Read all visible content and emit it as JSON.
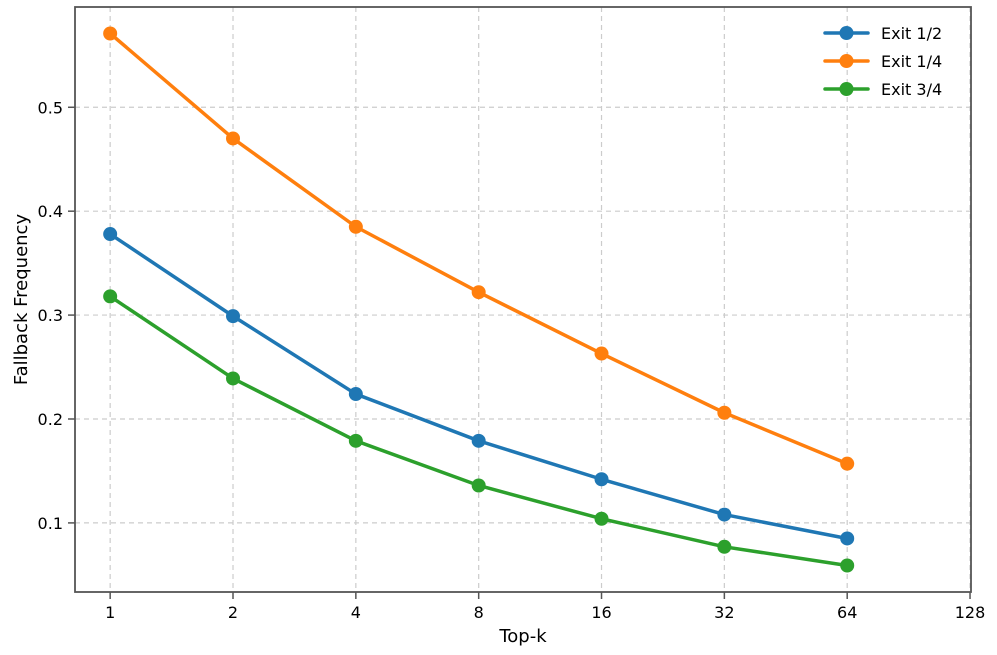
{
  "chart_data": {
    "type": "line",
    "title": "",
    "xlabel": "Top-k",
    "ylabel": "Fallback Frequency",
    "x_scale": "log2",
    "x": [
      1,
      2,
      4,
      8,
      16,
      32,
      64
    ],
    "x_ticks": [
      1,
      2,
      4,
      8,
      16,
      32,
      64,
      128
    ],
    "x_tick_labels": [
      "1",
      "2",
      "4",
      "8",
      "16",
      "32",
      "64",
      "128"
    ],
    "y_ticks": [
      0.1,
      0.2,
      0.3,
      0.4,
      0.5
    ],
    "y_tick_labels": [
      "0.1",
      "0.2",
      "0.3",
      "0.4",
      "0.5"
    ],
    "xlim": [
      0.82,
      128.7
    ],
    "ylim": [
      0.0335,
      0.5965
    ],
    "grid": true,
    "grid_style": "dashed",
    "legend": {
      "position": "upper-right",
      "frame": false
    },
    "series": [
      {
        "name": "Exit 1/2",
        "color": "#1f77b4",
        "values": [
          0.378,
          0.299,
          0.224,
          0.179,
          0.142,
          0.108,
          0.085
        ]
      },
      {
        "name": "Exit 1/4",
        "color": "#ff7f0e",
        "values": [
          0.571,
          0.47,
          0.385,
          0.322,
          0.263,
          0.206,
          0.157
        ]
      },
      {
        "name": "Exit 3/4",
        "color": "#2ca02c",
        "values": [
          0.318,
          0.239,
          0.179,
          0.136,
          0.104,
          0.077,
          0.059
        ]
      }
    ],
    "colors": {
      "grid": "#cccccc",
      "spine": "#555555",
      "text": "#000000",
      "background": "#ffffff"
    }
  }
}
